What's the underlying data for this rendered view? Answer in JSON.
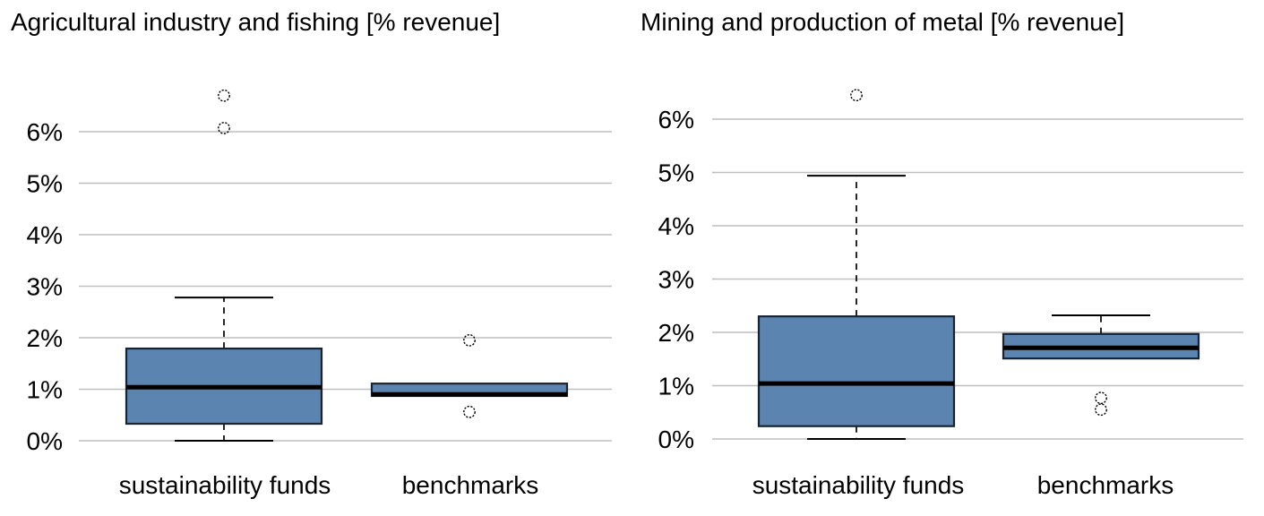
{
  "page": {
    "background": "#ffffff"
  },
  "colors": {
    "box_fill": "#5b84b1",
    "box_border": "#1a2430",
    "median_line": "#000000",
    "whisker_line": "#000000",
    "outlier_stroke": "#000000",
    "gridline": "#bfbfbf",
    "text": "#000000"
  },
  "chart_data": [
    {
      "type": "boxplot",
      "title": "Agricultural industry and fishing [% revenue]",
      "categories": [
        "sustainability funds",
        "benchmarks"
      ],
      "ylabel": "",
      "ylim": [
        0,
        7
      ],
      "yticks": [
        0,
        1,
        2,
        3,
        4,
        5,
        6
      ],
      "ytick_labels": [
        "0%",
        "1%",
        "2%",
        "3%",
        "4%",
        "5%",
        "6%"
      ],
      "grid": true,
      "legend": "none",
      "series": [
        {
          "name": "sustainability funds",
          "whisker_low": 0.0,
          "q1": 0.33,
          "median": 1.04,
          "q3": 1.79,
          "whisker_high": 2.78,
          "outliers": [
            6.07,
            6.7
          ]
        },
        {
          "name": "benchmarks",
          "whisker_low": null,
          "q1": 0.87,
          "median": 0.9,
          "q3": 1.11,
          "whisker_high": null,
          "outliers": [
            0.56,
            1.95
          ]
        }
      ]
    },
    {
      "type": "boxplot",
      "title": "Mining and production of metal [% revenue]",
      "categories": [
        "sustainability funds",
        "benchmarks"
      ],
      "ylabel": "",
      "ylim": [
        0,
        7
      ],
      "yticks": [
        0,
        1,
        2,
        3,
        4,
        5,
        6
      ],
      "ytick_labels": [
        "0%",
        "1%",
        "2%",
        "3%",
        "4%",
        "5%",
        "6%"
      ],
      "grid": true,
      "legend": "none",
      "series": [
        {
          "name": "sustainability funds",
          "whisker_low": 0.0,
          "q1": 0.24,
          "median": 1.04,
          "q3": 2.3,
          "whisker_high": 4.94,
          "outliers": [
            6.45
          ]
        },
        {
          "name": "benchmarks",
          "whisker_low": null,
          "q1": 1.51,
          "median": 1.71,
          "q3": 1.97,
          "whisker_high": 2.32,
          "outliers": [
            0.55,
            0.77
          ]
        }
      ]
    }
  ]
}
